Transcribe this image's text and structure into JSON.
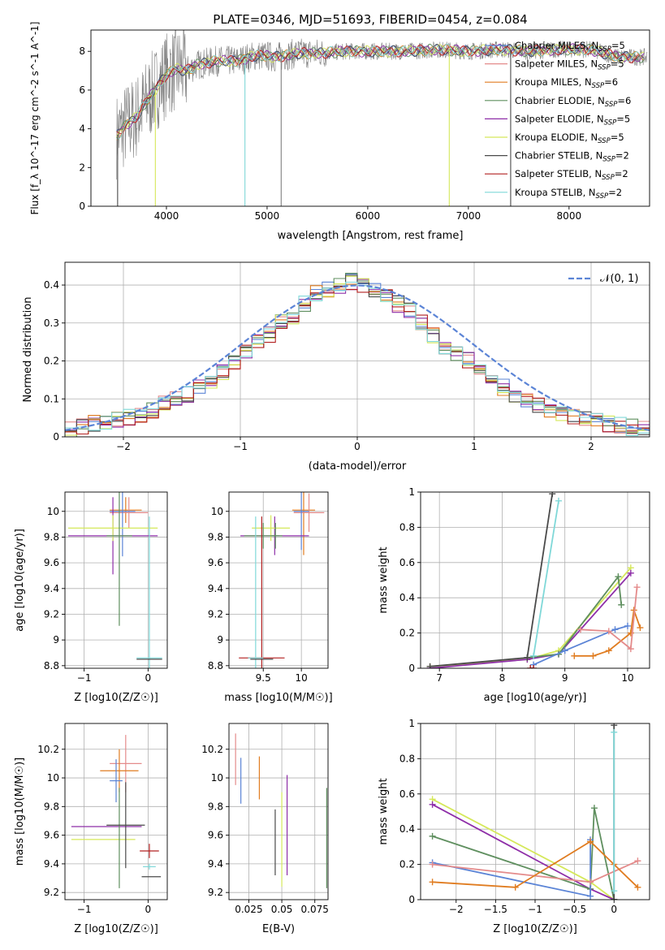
{
  "chart_data": [
    {
      "id": "spectrum",
      "type": "line",
      "title": "PLATE=0346, MJD=51693, FIBERID=0454, z=0.084",
      "xlabel": "wavelength [Angstrom, rest frame]",
      "ylabel": "Flux [f_λ 10^-17 erg cm^-2 s^-1 A^-1]",
      "xlim": [
        3250,
        8800
      ],
      "ylim": [
        0,
        9.1
      ],
      "xticks": [
        4000,
        5000,
        6000,
        7000,
        8000
      ],
      "yticks": [
        0,
        2,
        4,
        6,
        8
      ],
      "legend": "top-right",
      "data_description": "observed spectrum (grey) with 9 overlapping SSP model fits",
      "spectrum_x": [
        3500,
        3600,
        3700,
        3800,
        3900,
        4000,
        4100,
        4200,
        4300,
        4400,
        4500,
        4700,
        4900,
        5100,
        5300,
        5500,
        5800,
        6100,
        6400,
        6700,
        7000,
        7300,
        7600,
        7900,
        8200,
        8500
      ],
      "spectrum_y": [
        3.6,
        4.2,
        4.6,
        5.4,
        6.1,
        6.8,
        7.1,
        7.0,
        7.3,
        7.4,
        7.5,
        7.5,
        7.8,
        7.7,
        7.9,
        7.9,
        8.0,
        8.0,
        8.0,
        8.1,
        8.0,
        8.1,
        8.0,
        8.1,
        8.1,
        7.7
      ],
      "series": [
        {
          "name": "Chabrier MILES, N_SSP=5",
          "color": "#5b84d6"
        },
        {
          "name": "Salpeter MILES, N_SSP=5",
          "color": "#e48b8b"
        },
        {
          "name": "Kroupa MILES, N_SSP=6",
          "color": "#e07c20"
        },
        {
          "name": "Chabrier ELODIE, N_SSP=6",
          "color": "#5f8f5f"
        },
        {
          "name": "Salpeter ELODIE, N_SSP=5",
          "color": "#8e2ea8"
        },
        {
          "name": "Kroupa ELODIE, N_SSP=5",
          "color": "#d5e85a"
        },
        {
          "name": "Chabrier STELIB, N_SSP=2",
          "color": "#4a4a4a"
        },
        {
          "name": "Salpeter STELIB, N_SSP=2",
          "color": "#b22020"
        },
        {
          "name": "Kroupa STELIB, N_SSP=2",
          "color": "#7fd8d8"
        }
      ]
    },
    {
      "id": "residuals",
      "type": "line",
      "xlabel": "(data-model)/error",
      "ylabel": "Normed distribution",
      "xlim": [
        -2.5,
        2.5
      ],
      "ylim": [
        0,
        0.46
      ],
      "xticks": [
        -2,
        -1,
        0,
        1,
        2
      ],
      "yticks": [
        0.0,
        0.1,
        0.2,
        0.3,
        0.4
      ],
      "legend": "top-right",
      "reference_curve": {
        "name": "N(0,1)",
        "color": "#5b84d6"
      },
      "histogram_bins": [
        -2.5,
        2.5,
        50
      ],
      "histogram_envelope": [
        0.02,
        0.025,
        0.035,
        0.04,
        0.045,
        0.05,
        0.06,
        0.07,
        0.085,
        0.1,
        0.11,
        0.13,
        0.15,
        0.17,
        0.2,
        0.22,
        0.25,
        0.27,
        0.3,
        0.32,
        0.35,
        0.38,
        0.39,
        0.4,
        0.41,
        0.4,
        0.39,
        0.37,
        0.35,
        0.33,
        0.3,
        0.27,
        0.24,
        0.22,
        0.2,
        0.17,
        0.15,
        0.13,
        0.11,
        0.1,
        0.08,
        0.07,
        0.06,
        0.05,
        0.045,
        0.04,
        0.035,
        0.03,
        0.025,
        0.02
      ]
    },
    {
      "id": "age-vs-Z",
      "type": "scatter",
      "xlabel": "Z [log10(Z/Z☉)]",
      "ylabel": "age [log10(age/yr)]",
      "xlim": [
        -1.3,
        0.3
      ],
      "ylim": [
        8.78,
        10.15
      ],
      "xticks": [
        -1,
        0
      ],
      "yticks": [
        8.8,
        9.0,
        9.2,
        9.4,
        9.6,
        9.8,
        10.0
      ],
      "points": [
        {
          "x": -0.35,
          "y": 10.01,
          "xerr": 0.25,
          "yerr": 0.1,
          "color": "#e07c20"
        },
        {
          "x": -0.3,
          "y": 9.99,
          "xerr": 0.3,
          "yerr": 0.12,
          "color": "#e48b8b"
        },
        {
          "x": -0.4,
          "y": 10.0,
          "xerr": 0.2,
          "yerr": 0.35,
          "color": "#5b84d6"
        },
        {
          "x": -0.55,
          "y": 9.81,
          "xerr": 0.7,
          "yerr": 0.3,
          "color": "#8e2ea8"
        },
        {
          "x": -0.55,
          "y": 9.87,
          "xerr": 0.7,
          "yerr": 0.1,
          "color": "#d5e85a"
        },
        {
          "x": -0.45,
          "y": 9.81,
          "xerr": 0.2,
          "yerr": 0.7,
          "color": "#5f8f5f"
        },
        {
          "x": 0.02,
          "y": 8.86,
          "xerr": 0.2,
          "yerr": 1.1,
          "color": "#7fd8d8"
        },
        {
          "x": 0.02,
          "y": 8.85,
          "xerr": 0.2,
          "yerr": 0.0,
          "color": "#4a4a4a"
        }
      ]
    },
    {
      "id": "age-vs-mass",
      "type": "scatter",
      "xlabel": "mass [log10(M/M☉)]",
      "ylabel": "",
      "xlim": [
        9.05,
        10.35
      ],
      "ylim": [
        8.78,
        10.15
      ],
      "xticks": [
        9.5,
        10.0
      ],
      "yticks": [
        8.8,
        9.0,
        9.2,
        9.4,
        9.6,
        9.8,
        10.0
      ],
      "points": [
        {
          "x": 10.03,
          "y": 10.01,
          "xerr": 0.15,
          "yerr": 0.35,
          "color": "#e07c20"
        },
        {
          "x": 10.1,
          "y": 9.99,
          "xerr": 0.2,
          "yerr": 0.15,
          "color": "#e48b8b"
        },
        {
          "x": 10.0,
          "y": 10.0,
          "xerr": 0.1,
          "yerr": 0.3,
          "color": "#5b84d6"
        },
        {
          "x": 9.65,
          "y": 9.81,
          "xerr": 0.45,
          "yerr": 0.15,
          "color": "#8e2ea8"
        },
        {
          "x": 9.6,
          "y": 9.87,
          "xerr": 0.25,
          "yerr": 0.1,
          "color": "#d5e85a"
        },
        {
          "x": 9.5,
          "y": 9.81,
          "xerr": 0.25,
          "yerr": 0.1,
          "color": "#5f8f5f"
        },
        {
          "x": 9.66,
          "y": 9.81,
          "xerr": 0.05,
          "yerr": 0.1,
          "color": "#5f8f5f"
        },
        {
          "x": 9.48,
          "y": 8.86,
          "xerr": 0.3,
          "yerr": 1.1,
          "color": "#b22020"
        },
        {
          "x": 9.4,
          "y": 8.86,
          "xerr": 0.1,
          "yerr": 1.1,
          "color": "#7fd8d8"
        },
        {
          "x": 9.48,
          "y": 8.85,
          "xerr": 0.15,
          "yerr": 0.0,
          "color": "#4a4a4a"
        }
      ]
    },
    {
      "id": "weight-vs-age",
      "type": "line",
      "xlabel": "age [log10(age/yr)]",
      "ylabel": "mass weight",
      "xlim": [
        6.7,
        10.35
      ],
      "ylim": [
        0,
        1.0
      ],
      "xticks": [
        7,
        8,
        9,
        10
      ],
      "yticks": [
        0.0,
        0.2,
        0.4,
        0.6,
        0.8,
        1.0
      ],
      "series": [
        {
          "color": "#d5e85a",
          "x": [
            6.85,
            8.4,
            8.9,
            10.05
          ],
          "y": [
            0.01,
            0.05,
            0.1,
            0.57
          ]
        },
        {
          "color": "#8e2ea8",
          "x": [
            6.85,
            8.4,
            8.9,
            10.05
          ],
          "y": [
            0.0,
            0.05,
            0.08,
            0.54
          ]
        },
        {
          "color": "#5f8f5f",
          "x": [
            8.4,
            8.9,
            9.85,
            9.9
          ],
          "y": [
            0.06,
            0.08,
            0.52,
            0.36
          ]
        },
        {
          "color": "#4a4a4a",
          "x": [
            6.85,
            8.4,
            8.8
          ],
          "y": [
            0.01,
            0.06,
            0.99
          ]
        },
        {
          "color": "#7fd8d8",
          "x": [
            8.5,
            8.9
          ],
          "y": [
            0.07,
            0.95
          ]
        },
        {
          "color": "#5b84d6",
          "x": [
            8.5,
            9.0,
            9.8,
            10.0
          ],
          "y": [
            0.02,
            0.1,
            0.22,
            0.24
          ]
        },
        {
          "color": "#e07c20",
          "x": [
            9.15,
            9.45,
            9.7,
            10.05,
            10.1,
            10.2
          ],
          "y": [
            0.07,
            0.07,
            0.1,
            0.2,
            0.33,
            0.23
          ]
        },
        {
          "color": "#e48b8b",
          "x": [
            9.25,
            9.7,
            10.05,
            10.15
          ],
          "y": [
            0.22,
            0.21,
            0.11,
            0.46
          ]
        },
        {
          "color": "#b22020",
          "x": [
            8.45,
            8.5
          ],
          "y": [
            0.0,
            0.0
          ]
        }
      ]
    },
    {
      "id": "mass-vs-Z",
      "type": "scatter",
      "xlabel": "Z [log10(Z/Z☉)]",
      "ylabel": "mass [log10(M/M☉)]",
      "xlim": [
        -1.3,
        0.3
      ],
      "ylim": [
        9.15,
        10.38
      ],
      "xticks": [
        -1,
        0
      ],
      "yticks": [
        9.2,
        9.4,
        9.6,
        9.8,
        10.0,
        10.2
      ],
      "points": [
        {
          "x": -0.35,
          "y": 10.1,
          "xerr": 0.25,
          "yerr": 0.2,
          "color": "#e48b8b"
        },
        {
          "x": -0.45,
          "y": 10.05,
          "xerr": 0.3,
          "yerr": 0.15,
          "color": "#e07c20"
        },
        {
          "x": -0.5,
          "y": 9.98,
          "xerr": 0.1,
          "yerr": 0.15,
          "color": "#5b84d6"
        },
        {
          "x": -0.65,
          "y": 9.66,
          "xerr": 0.55,
          "yerr": 0.0,
          "color": "#8e2ea8"
        },
        {
          "x": -0.7,
          "y": 9.57,
          "xerr": 0.5,
          "yerr": 0.0,
          "color": "#d5e85a"
        },
        {
          "x": -0.45,
          "y": 9.58,
          "xerr": 0.0,
          "yerr": 0.35,
          "color": "#5f8f5f"
        },
        {
          "x": -0.35,
          "y": 9.67,
          "xerr": 0.3,
          "yerr": 0.3,
          "color": "#4a4a4a"
        },
        {
          "x": 0.02,
          "y": 9.49,
          "xerr": 0.15,
          "yerr": 0.05,
          "color": "#b22020"
        },
        {
          "x": 0.02,
          "y": 9.38,
          "xerr": 0.1,
          "yerr": 0.02,
          "color": "#7fd8d8"
        },
        {
          "x": 0.05,
          "y": 9.31,
          "xerr": 0.15,
          "yerr": 0.0,
          "color": "#4a4a4a"
        }
      ]
    },
    {
      "id": "mass-vs-ebv",
      "type": "scatter",
      "xlabel": "E(B-V)",
      "ylabel": "",
      "xlim": [
        0.01,
        0.085
      ],
      "ylim": [
        9.15,
        10.38
      ],
      "xticks": [
        0.025,
        0.05,
        0.075
      ],
      "yticks": [
        9.2,
        9.4,
        9.6,
        9.8,
        10.0,
        10.2
      ],
      "points": [
        {
          "x": 0.015,
          "y": 10.13,
          "yerr": 0.18,
          "color": "#e48b8b"
        },
        {
          "x": 0.019,
          "y": 9.98,
          "yerr": 0.16,
          "color": "#5b84d6"
        },
        {
          "x": 0.033,
          "y": 10.0,
          "yerr": 0.15,
          "color": "#e07c20"
        },
        {
          "x": 0.045,
          "y": 9.55,
          "yerr": 0.23,
          "color": "#4a4a4a"
        },
        {
          "x": 0.05,
          "y": 9.57,
          "yerr": 0.33,
          "color": "#d5e85a"
        },
        {
          "x": 0.054,
          "y": 9.67,
          "yerr": 0.35,
          "color": "#8e2ea8"
        },
        {
          "x": 0.084,
          "y": 9.58,
          "yerr": 0.35,
          "color": "#5f8f5f"
        }
      ]
    },
    {
      "id": "weight-vs-Z",
      "type": "line",
      "xlabel": "Z [log10(Z/Z☉)]",
      "ylabel": "mass weight",
      "xlim": [
        -2.45,
        0.45
      ],
      "ylim": [
        0,
        1.0
      ],
      "xticks": [
        -2.0,
        -1.5,
        -1.0,
        -0.5,
        0.0
      ],
      "yticks": [
        0.0,
        0.2,
        0.4,
        0.6,
        0.8,
        1.0
      ],
      "series": [
        {
          "color": "#d5e85a",
          "x": [
            -2.3,
            -0.3,
            0.0
          ],
          "y": [
            0.57,
            0.1,
            0.0
          ]
        },
        {
          "color": "#8e2ea8",
          "x": [
            -2.3,
            -0.3,
            0.0
          ],
          "y": [
            0.54,
            0.06,
            0.0
          ]
        },
        {
          "color": "#5f8f5f",
          "x": [
            -2.3,
            -0.3,
            -0.25,
            0.0
          ],
          "y": [
            0.36,
            0.06,
            0.52,
            0.0
          ]
        },
        {
          "color": "#5b84d6",
          "x": [
            -2.3,
            -0.3,
            -0.3
          ],
          "y": [
            0.21,
            0.02,
            0.34
          ]
        },
        {
          "color": "#e48b8b",
          "x": [
            -2.3,
            -0.3,
            0.3
          ],
          "y": [
            0.2,
            0.1,
            0.22
          ]
        },
        {
          "color": "#e07c20",
          "x": [
            -2.3,
            -1.25,
            -0.3,
            0.0,
            0.3
          ],
          "y": [
            0.1,
            0.07,
            0.33,
            0.2,
            0.07
          ]
        },
        {
          "color": "#4a4a4a",
          "x": [
            0.0,
            0.0
          ],
          "y": [
            0.0,
            0.99
          ]
        },
        {
          "color": "#7fd8d8",
          "x": [
            0.0,
            0.0
          ],
          "y": [
            0.05,
            0.95
          ]
        }
      ]
    }
  ]
}
